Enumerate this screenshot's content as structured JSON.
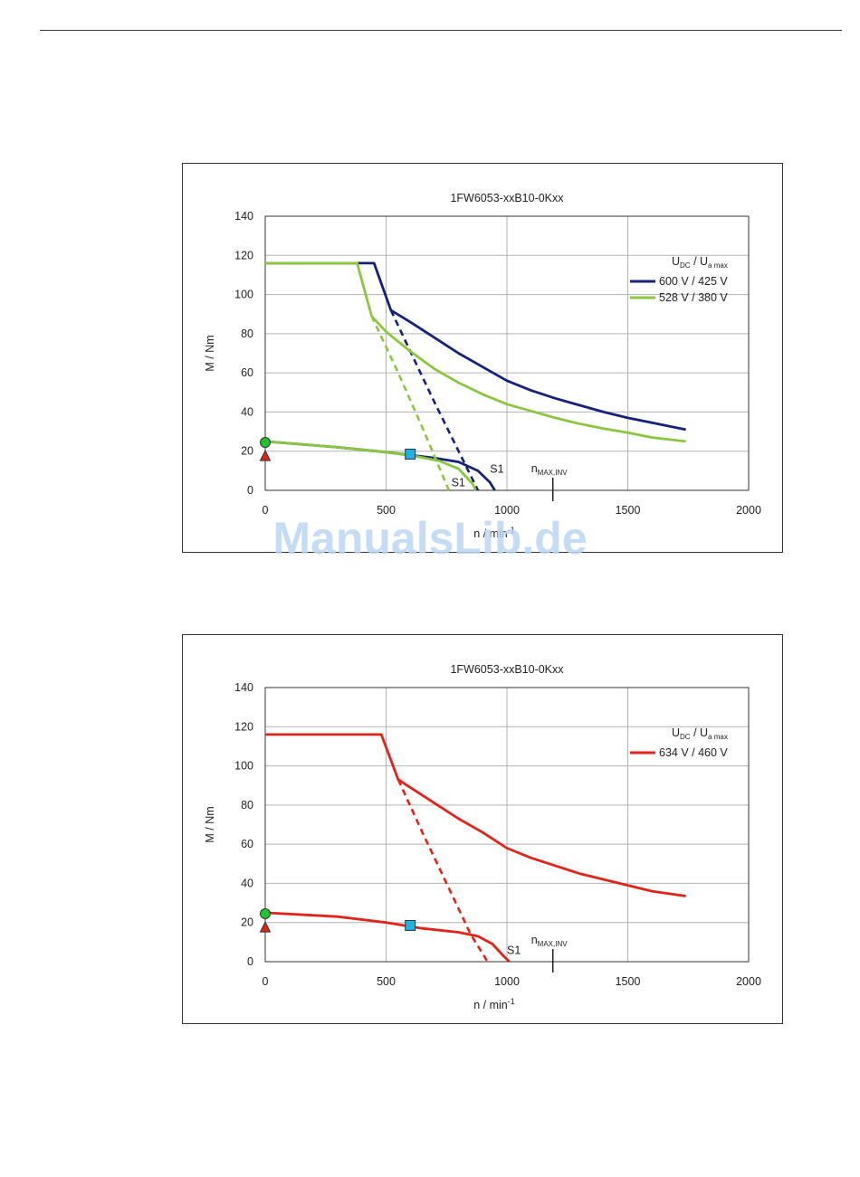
{
  "watermark": "ManualsLib.de",
  "chart_data": [
    {
      "type": "line",
      "title": "1FW6053-xxB10-0Kxx",
      "xlabel": "n / min",
      "xlabel_sup": "-1",
      "ylabel": "M / Nm",
      "xlim": [
        0,
        2000
      ],
      "ylim": [
        0,
        140
      ],
      "xticks": [
        0,
        500,
        1000,
        1500,
        2000
      ],
      "yticks": [
        0,
        20,
        40,
        60,
        80,
        100,
        120,
        140
      ],
      "grid": true,
      "legend_position": "top-right",
      "legend_header": {
        "u": "U",
        "dc": "DC",
        "sep": "/",
        "ua": "U",
        "amax": "a max"
      },
      "nmax_marker": {
        "x": 1190,
        "label": "n",
        "label_sub": "MAX,INV"
      },
      "point_markers": [
        {
          "shape": "circle",
          "x": 0,
          "y": 24.5,
          "color": "#22c32e"
        },
        {
          "shape": "triangle",
          "x": 0,
          "y": 17.5,
          "color": "#e2231a"
        },
        {
          "shape": "square",
          "x": 600,
          "y": 18.5,
          "color": "#1fb4e0"
        }
      ],
      "series": [
        {
          "name": "600 V / 425 V",
          "color": "#15217a",
          "max_torque": [
            [
              0,
              116
            ],
            [
              430,
              116
            ],
            [
              450,
              116
            ],
            [
              520,
              92
            ],
            [
              600,
              86
            ],
            [
              700,
              78
            ],
            [
              800,
              70
            ],
            [
              900,
              63
            ],
            [
              1000,
              56
            ],
            [
              1100,
              51
            ],
            [
              1200,
              47
            ],
            [
              1300,
              43.5
            ],
            [
              1400,
              40
            ],
            [
              1500,
              37
            ],
            [
              1600,
              34.5
            ],
            [
              1740,
              31
            ]
          ],
          "max_torque_dashed": [
            [
              520,
              92
            ],
            [
              600,
              71
            ],
            [
              700,
              45
            ],
            [
              800,
              20
            ],
            [
              880,
              0
            ]
          ],
          "s1": [
            [
              0,
              25
            ],
            [
              300,
              22
            ],
            [
              500,
              19.5
            ],
            [
              700,
              16.5
            ],
            [
              800,
              14.5
            ],
            [
              880,
              10
            ],
            [
              930,
              4
            ],
            [
              950,
              0
            ]
          ],
          "s1_label": "S1",
          "s1_label_at": [
            930,
            9
          ]
        },
        {
          "name": "528 V / 380 V",
          "color": "#8cc63f",
          "max_torque": [
            [
              0,
              116
            ],
            [
              360,
              116
            ],
            [
              380,
              116
            ],
            [
              440,
              89
            ],
            [
              500,
              81
            ],
            [
              600,
              71
            ],
            [
              700,
              62
            ],
            [
              800,
              55
            ],
            [
              900,
              49
            ],
            [
              1000,
              44
            ],
            [
              1100,
              40.5
            ],
            [
              1200,
              37
            ],
            [
              1300,
              34
            ],
            [
              1400,
              31.5
            ],
            [
              1500,
              29.5
            ],
            [
              1600,
              27
            ],
            [
              1740,
              25
            ]
          ],
          "max_torque_dashed": [
            [
              440,
              89
            ],
            [
              550,
              60
            ],
            [
              650,
              32
            ],
            [
              760,
              0
            ]
          ],
          "s1": [
            [
              0,
              25
            ],
            [
              300,
              22
            ],
            [
              500,
              19.5
            ],
            [
              620,
              17.5
            ],
            [
              720,
              15
            ],
            [
              800,
              11
            ],
            [
              860,
              3
            ],
            [
              870,
              0
            ]
          ],
          "s1_label": "S1",
          "s1_label_at": [
            770,
            2
          ]
        }
      ]
    },
    {
      "type": "line",
      "title": "1FW6053-xxB10-0Kxx",
      "xlabel": "n / min",
      "xlabel_sup": "-1",
      "ylabel": "M / Nm",
      "xlim": [
        0,
        2000
      ],
      "ylim": [
        0,
        140
      ],
      "xticks": [
        0,
        500,
        1000,
        1500,
        2000
      ],
      "yticks": [
        0,
        20,
        40,
        60,
        80,
        100,
        120,
        140
      ],
      "grid": true,
      "legend_position": "top-right",
      "legend_header": {
        "u": "U",
        "dc": "DC",
        "sep": "/",
        "ua": "U",
        "amax": "a max"
      },
      "nmax_marker": {
        "x": 1190,
        "label": "n",
        "label_sub": "MAX,INV"
      },
      "point_markers": [
        {
          "shape": "circle",
          "x": 0,
          "y": 24.5,
          "color": "#22c32e"
        },
        {
          "shape": "triangle",
          "x": 0,
          "y": 17.5,
          "color": "#e2231a"
        },
        {
          "shape": "square",
          "x": 600,
          "y": 18.5,
          "color": "#1fb4e0"
        }
      ],
      "series": [
        {
          "name": "634 V / 460 V",
          "color": "#e2231a",
          "max_torque": [
            [
              0,
              116
            ],
            [
              465,
              116
            ],
            [
              480,
              116
            ],
            [
              550,
              93
            ],
            [
              600,
              89
            ],
            [
              700,
              81
            ],
            [
              800,
              73
            ],
            [
              900,
              66
            ],
            [
              1000,
              58
            ],
            [
              1100,
              53
            ],
            [
              1200,
              49
            ],
            [
              1300,
              45
            ],
            [
              1400,
              42
            ],
            [
              1500,
              39
            ],
            [
              1600,
              36
            ],
            [
              1740,
              33.5
            ]
          ],
          "max_torque_dashed": [
            [
              550,
              93
            ],
            [
              650,
              66
            ],
            [
              750,
              40
            ],
            [
              850,
              14
            ],
            [
              920,
              0
            ]
          ],
          "s1": [
            [
              0,
              25
            ],
            [
              300,
              23
            ],
            [
              500,
              20
            ],
            [
              650,
              17
            ],
            [
              800,
              15
            ],
            [
              880,
              13
            ],
            [
              940,
              9
            ],
            [
              985,
              3
            ],
            [
              1010,
              0
            ]
          ],
          "s1_label": "S1",
          "s1_label_at": [
            1000,
            4
          ]
        }
      ]
    }
  ]
}
